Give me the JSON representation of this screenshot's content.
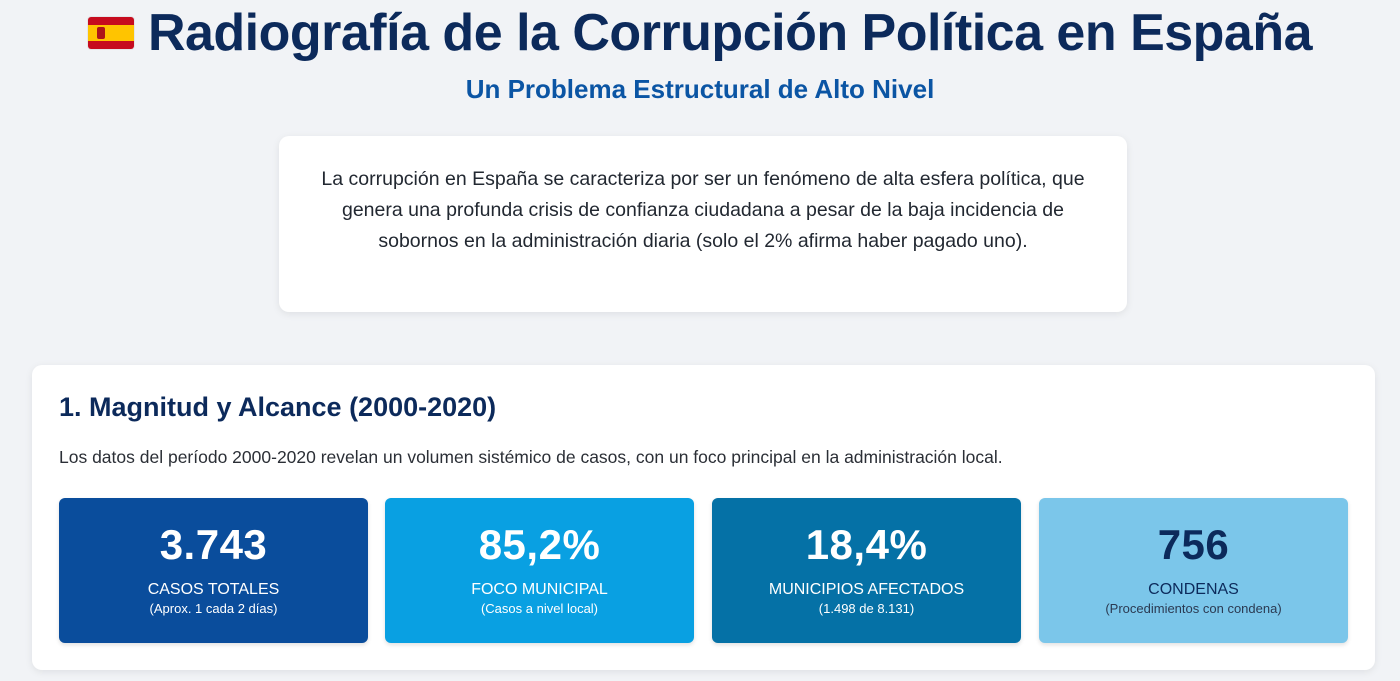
{
  "header": {
    "flag_icon": "spain-flag-icon",
    "title": "Radiografía de la Corrupción Política en España",
    "subtitle": "Un Problema Estructural de Alto Nivel"
  },
  "intro": {
    "text": "La corrupción en España se caracteriza por ser un fenómeno de alta esfera política, que genera una profunda crisis de confianza ciudadana a pesar de la baja incidencia de sobornos en la administración diaria (solo el 2% afirma haber pagado uno)."
  },
  "section1": {
    "title": "1. Magnitud y Alcance (2000-2020)",
    "description": "Los datos del período 2000-2020 revelan un volumen sistémico de casos, con un foco principal en la administración local.",
    "stats": [
      {
        "value": "3.743",
        "label": "CASOS TOTALES",
        "note": "(Aprox. 1 cada 2 días)",
        "color": "#0a4d9c"
      },
      {
        "value": "85,2%",
        "label": "FOCO MUNICIPAL",
        "note": "(Casos a nivel local)",
        "color": "#09a0e2"
      },
      {
        "value": "18,4%",
        "label": "MUNICIPIOS AFECTADOS",
        "note": "(1.498 de 8.131)",
        "color": "#0571a6"
      },
      {
        "value": "756",
        "label": "CONDENAS",
        "note": "(Procedimientos con condena)",
        "color": "#7bc6ea"
      }
    ]
  },
  "colors": {
    "title": "#0c2a5b",
    "subtitle": "#0b55a4",
    "background": "#f1f3f6"
  }
}
